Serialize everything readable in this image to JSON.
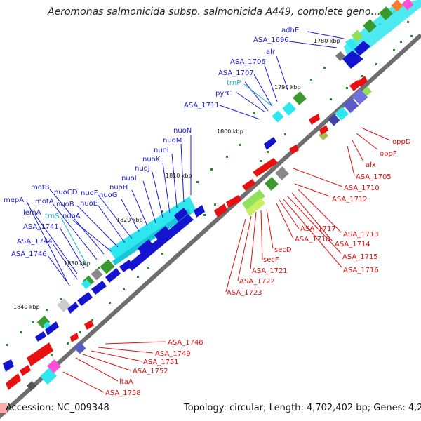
{
  "title": "Aeromonas salmonicida subsp. salmonicida A449, complete geno…",
  "accession": "Accession: NC_009348",
  "topology": "Topology: circular; Length: 4,702,402 bp; Genes: 4,231",
  "ticks": [
    "1780 kbp",
    "1790 kbp",
    "1800 kbp",
    "1810 kbp",
    "1820 kbp",
    "1830 kbp",
    "1840 kbp"
  ],
  "labels": {
    "adhE": "adhE",
    "ASA_1696": "ASA_1696",
    "alr": "alr",
    "ASA_1706": "ASA_1706",
    "ASA_1707": "ASA_1707",
    "trnP": "trnP",
    "pyrC": "pyrC",
    "ASA_1711": "ASA_1711",
    "nuoN": "nuoN",
    "nuoM": "nuoM",
    "nuoL": "nuoL",
    "nuoK": "nuoK",
    "nuoJ": "nuoJ",
    "nuoI": "nuoI",
    "nuoH": "nuoH",
    "nuoG": "nuoG",
    "nuoF": "nuoF",
    "nuoE": "nuoE",
    "nuoCD": "nuoCD",
    "nuoB": "nuoB",
    "nuoA": "nuoA",
    "motB": "motB",
    "motA": "motA",
    "mepA": "mepA",
    "lemA": "lemA",
    "trnS": "trnS",
    "ASA_1741": "ASA_1741",
    "ASA_1744": "ASA_1744",
    "ASA_1746": "ASA_1746",
    "oppD": "oppD",
    "oppF": "oppF",
    "alx": "alx",
    "ASA_1705": "ASA_1705",
    "ASA_1710": "ASA_1710",
    "ASA_1712": "ASA_1712",
    "ASA_1713": "ASA_1713",
    "ASA_1714": "ASA_1714",
    "ASA_1715": "ASA_1715",
    "ASA_1716": "ASA_1716",
    "ASA_1717": "ASA_1717",
    "ASA_1718": "ASA_1718",
    "secD": "secD",
    "secF": "secF",
    "ASA_1721": "ASA_1721",
    "ASA_1722": "ASA_1722",
    "ASA_1723": "ASA_1723",
    "ASA_1748": "ASA_1748",
    "ASA_1749": "ASA_1749",
    "ASA_1751": "ASA_1751",
    "ASA_1752": "ASA_1752",
    "ltaA": "ltaA",
    "ASA_1758": "ASA_1758"
  },
  "colors": {
    "forward_gene": "#1414d0",
    "reverse_gene": "#e81010",
    "backbone": "#6e6e6e",
    "trna": "#19b7c8",
    "cog_cyan": "#2ee6ee",
    "cog_green": "#3a9a30",
    "gc_skew": "#2a8a2a"
  }
}
